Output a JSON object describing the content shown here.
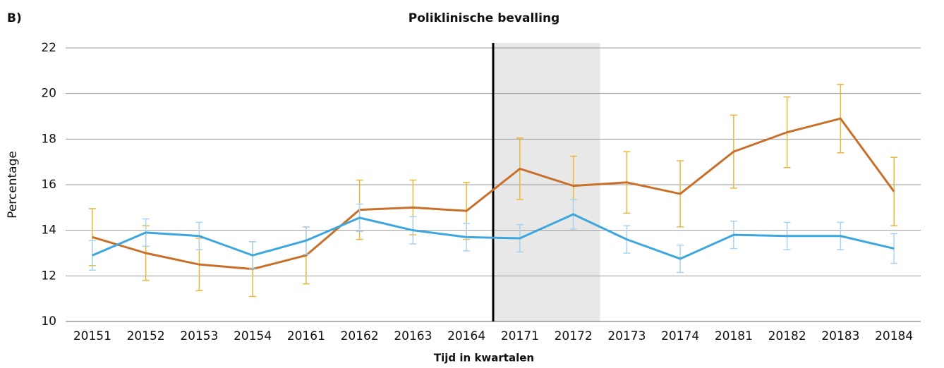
{
  "chart_data": {
    "type": "line",
    "panel_label": "B)",
    "title": "Poliklinische bevalling",
    "x_label": "Tijd in kwartalen",
    "y_label": "Percentage",
    "categories": [
      "20151",
      "20152",
      "20153",
      "20154",
      "20161",
      "20162",
      "20163",
      "20164",
      "20171",
      "20172",
      "20173",
      "20174",
      "20181",
      "20182",
      "20183",
      "20184"
    ],
    "series": [
      {
        "color": "#c8702a",
        "error_color": "#e8b83a",
        "values": [
          13.7,
          13.0,
          12.5,
          12.3,
          12.9,
          14.9,
          15.0,
          14.85,
          16.7,
          15.95,
          16.1,
          15.6,
          17.45,
          18.3,
          18.9,
          15.7
        ],
        "errors": [
          1.25,
          1.2,
          1.15,
          1.2,
          1.25,
          1.3,
          1.2,
          1.25,
          1.35,
          1.3,
          1.35,
          1.45,
          1.6,
          1.55,
          1.5,
          1.5
        ]
      },
      {
        "color": "#3ea6df",
        "error_color": "#a9d3ef",
        "values": [
          12.9,
          13.9,
          13.75,
          12.9,
          13.55,
          14.55,
          14.0,
          13.7,
          13.65,
          14.7,
          13.6,
          12.75,
          13.8,
          13.75,
          13.75,
          13.2
        ],
        "errors": [
          0.65,
          0.6,
          0.6,
          0.6,
          0.6,
          0.6,
          0.6,
          0.6,
          0.6,
          0.65,
          0.6,
          0.6,
          0.6,
          0.6,
          0.6,
          0.65
        ]
      }
    ],
    "ylim": [
      10,
      22
    ],
    "yticks": [
      10,
      12,
      14,
      16,
      18,
      20,
      22
    ],
    "grid": true
  }
}
